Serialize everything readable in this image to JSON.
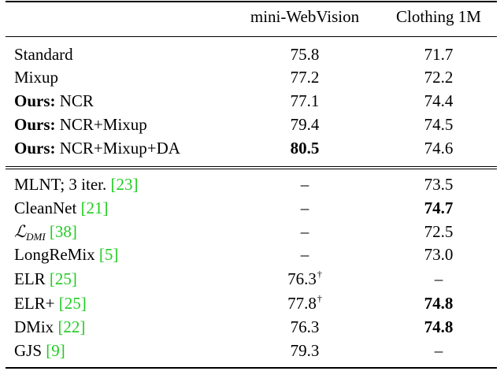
{
  "headers": {
    "col_method": "",
    "col_a": "mini-WebVision",
    "col_b": "Clothing 1M"
  },
  "group1": [
    {
      "prefix": "",
      "name": "Standard",
      "a": "75.8",
      "b": "71.7"
    },
    {
      "prefix": "",
      "name": "Mixup",
      "a": "77.2",
      "b": "72.2"
    },
    {
      "prefix": "Ours:",
      "name": " NCR",
      "a": "77.1",
      "b": "74.4"
    },
    {
      "prefix": "Ours:",
      "name": " NCR+Mixup",
      "a": "79.4",
      "b": "74.5"
    },
    {
      "prefix": "Ours:",
      "name": " NCR+Mixup+DA",
      "a": "80.5",
      "b": "74.6"
    }
  ],
  "group2": [
    {
      "name": "MLNT; 3 iter. ",
      "cite": "[23]",
      "a": "–",
      "b": "73.5"
    },
    {
      "name": "CleanNet ",
      "cite": "[21]",
      "a": "–",
      "b": "74.7"
    },
    {
      "name_script": "ℒ",
      "name_sub": "DMI",
      "name": " ",
      "cite": "[38]",
      "a": "–",
      "b": "72.5"
    },
    {
      "name": "LongReMix ",
      "cite": "[5]",
      "a": "–",
      "b": "73.0"
    },
    {
      "name": "ELR ",
      "cite": "[25]",
      "a": "76.3",
      "a_mark": "†",
      "b": "–"
    },
    {
      "name": "ELR+ ",
      "cite": "[25]",
      "a": "77.8",
      "a_mark": "†",
      "b": "74.8"
    },
    {
      "name": "DMix ",
      "cite": "[22]",
      "a": "76.3",
      "b": "74.8"
    },
    {
      "name": "GJS ",
      "cite": "[9]",
      "a": "79.3",
      "b": "–"
    }
  ],
  "colors": {
    "citation": "#22cc22",
    "text": "#000000",
    "rules": "#000000"
  }
}
